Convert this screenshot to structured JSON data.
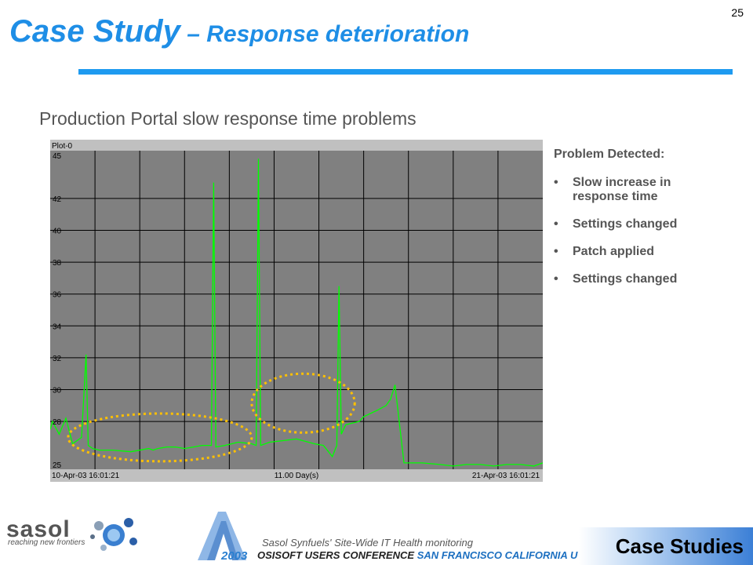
{
  "slide_number": "25",
  "title": {
    "main": "Case Study",
    "sub": " – Response  deterioration"
  },
  "subtitle": "Production Portal slow response time problems",
  "plot": {
    "label": "Plot-0",
    "x_start": "10-Apr-03 16:01:21",
    "x_span": "11.00 Day(s)",
    "x_end": "21-Apr-03 16:01:21"
  },
  "chart_data": {
    "type": "line",
    "title": "Plot-0",
    "y_tick_labels": [
      "45",
      "42",
      "40",
      "38",
      "36",
      "34",
      "32",
      "30",
      "28",
      "25"
    ],
    "ylim": [
      25,
      45
    ],
    "x_start": "10-Apr-03 16:01:21",
    "x_end": "21-Apr-03 16:01:21",
    "x_span_days": 11,
    "grid": true,
    "series": [
      {
        "color": "#00ff00",
        "x_days": [
          0,
          0.05,
          0.2,
          0.35,
          0.5,
          0.7,
          0.8,
          0.85,
          0.95,
          1.1,
          1.4,
          1.8,
          2.2,
          2.3,
          2.4,
          2.6,
          2.8,
          3.0,
          3.2,
          3.4,
          3.6,
          3.65,
          3.7,
          3.9,
          4.2,
          4.5,
          4.6,
          4.65,
          4.7,
          4.9,
          5.2,
          5.5,
          5.9,
          6.1,
          6.3,
          6.4,
          6.45,
          6.5,
          6.6,
          6.9,
          7.0,
          7.3,
          7.5,
          7.6,
          7.7,
          7.9,
          8.3,
          8.7,
          9.0,
          9.3,
          9.6,
          9.9,
          10.2,
          10.5,
          10.8,
          11.0
        ],
        "values": [
          27.5,
          28.0,
          27.2,
          28.2,
          26.6,
          27.0,
          32.2,
          26.5,
          26.3,
          26.2,
          26.2,
          26.1,
          26.3,
          26.2,
          26.3,
          26.4,
          26.4,
          26.3,
          26.4,
          26.5,
          26.5,
          43.0,
          26.4,
          26.5,
          26.7,
          26.6,
          26.5,
          44.5,
          26.5,
          26.7,
          26.8,
          26.9,
          26.6,
          26.5,
          25.8,
          26.5,
          36.5,
          27.2,
          27.8,
          28.0,
          28.3,
          28.7,
          29.0,
          29.4,
          30.3,
          25.4,
          25.4,
          25.3,
          25.2,
          25.3,
          25.3,
          25.2,
          25.3,
          25.3,
          25.2,
          25.4
        ]
      }
    ],
    "annotations": [
      {
        "shape": "dotted-ellipse",
        "color": "#ffc000",
        "x_days": [
          0.4,
          4.5
        ],
        "y": [
          25.5,
          28.5
        ]
      },
      {
        "shape": "dotted-ellipse",
        "color": "#ffc000",
        "x_days": [
          4.5,
          6.8
        ],
        "y": [
          27.3,
          31.0
        ]
      }
    ]
  },
  "panel": {
    "heading": "Problem Detected:",
    "bullets": [
      {
        "text": "Slow increase in response time"
      },
      {
        "text": "Settings changed"
      },
      {
        "text": "Patch applied"
      },
      {
        "text": "Settings changed"
      }
    ]
  },
  "footer": {
    "logo": "sasol",
    "tagline": "reaching new frontiers",
    "note": "Sasol Synfuels' Site-Wide IT Health monitoring",
    "conf_year": "2003",
    "conf_name": "OSISOFT USERS CONFERENCE",
    "conf_location": "SAN FRANCISCO CALIFORNIA U",
    "section": "Case Studies"
  },
  "colors": {
    "title": "#1e8ee6",
    "rule": "#1e9af0",
    "trace": "#00ff00",
    "plot_bg": "#808080",
    "annotation": "#ffc000"
  }
}
